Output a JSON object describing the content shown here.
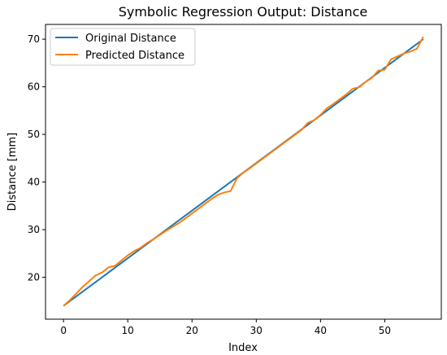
{
  "chart_data": {
    "type": "line",
    "title": "Symbolic Regression Output: Distance",
    "xlabel": "Index",
    "ylabel": "Distance [mm]",
    "xlim": [
      -2.8,
      58.8
    ],
    "ylim": [
      11.2,
      73.1
    ],
    "xticks": [
      0,
      10,
      20,
      30,
      40,
      50
    ],
    "yticks": [
      20,
      30,
      40,
      50,
      60,
      70
    ],
    "grid": false,
    "legend_position": "top-left",
    "colors": {
      "original": "#1f77b4",
      "predicted": "#ff7f0e"
    },
    "series": [
      {
        "name": "Original Distance",
        "x": [
          0,
          56
        ],
        "y": [
          14.0,
          70.0
        ]
      },
      {
        "name": "Predicted Distance",
        "x": [
          0,
          1,
          2,
          3,
          4,
          5,
          6,
          7,
          8,
          9,
          10,
          11,
          12,
          13,
          14,
          15,
          16,
          17,
          18,
          19,
          20,
          21,
          22,
          23,
          24,
          25,
          26,
          27,
          28,
          29,
          30,
          31,
          32,
          33,
          34,
          35,
          36,
          37,
          38,
          39,
          40,
          41,
          42,
          43,
          44,
          45,
          46,
          47,
          48,
          49,
          50,
          51,
          52,
          53,
          54,
          55,
          56
        ],
        "y": [
          14.0,
          15.2,
          16.6,
          18.0,
          19.2,
          20.4,
          21.0,
          22.1,
          22.4,
          23.5,
          24.6,
          25.5,
          26.2,
          27.2,
          28.0,
          28.9,
          29.8,
          30.6,
          31.4,
          32.4,
          33.4,
          34.4,
          35.4,
          36.4,
          37.3,
          37.8,
          38.1,
          40.8,
          42.0,
          42.9,
          43.9,
          44.9,
          45.9,
          46.9,
          47.9,
          48.9,
          49.9,
          50.9,
          52.4,
          53.0,
          54.1,
          55.5,
          56.4,
          57.4,
          58.4,
          59.6,
          59.9,
          61.0,
          61.9,
          63.4,
          63.6,
          65.8,
          66.4,
          67.0,
          67.4,
          68.0,
          70.5
        ]
      }
    ]
  }
}
